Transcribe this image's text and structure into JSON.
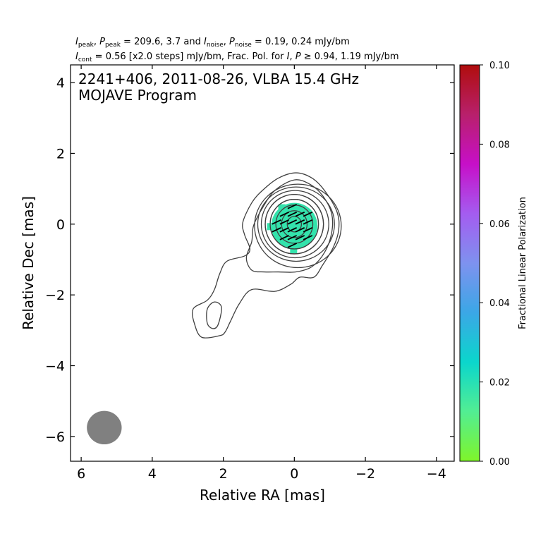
{
  "header": {
    "line1": {
      "i_peak_sym": "I",
      "i_peak_sub": "peak",
      "p_peak_sym": "P",
      "p_peak_sub": "peak",
      "peaks_text": " = 209.6, 3.7 and ",
      "i_noise_sym": "I",
      "i_noise_sub": "noise",
      "p_noise_sym": "P",
      "p_noise_sub": "noise",
      "noise_text": " = 0.19, 0.24 mJy/bm"
    },
    "line2": {
      "i_cont_sym": "I",
      "i_cont_sub": "cont",
      "cont_text": " = 0.56 [x2.0 steps] mJy/bm, Frac. Pol. for ",
      "i_sym": "I",
      "p_sym": "P",
      "ge_text": " ≥ 0.94, 1.19 mJy/bm"
    }
  },
  "chart_data": {
    "type": "contour",
    "source": "2241+406, 2011-08-26, VLBA 15.4 GHz",
    "program": "MOJAVE Program",
    "xlabel": "Relative RA [mas]",
    "ylabel": "Relative Dec [mas]",
    "xlim": [
      6.3,
      -4.5
    ],
    "ylim": [
      -6.7,
      4.5
    ],
    "x_ticks": [
      6,
      4,
      2,
      0,
      -2,
      -4
    ],
    "x_tick_labels": [
      "6",
      "4",
      "2",
      "0",
      "−2",
      "−4"
    ],
    "y_ticks": [
      4,
      2,
      0,
      -2,
      -4,
      -6
    ],
    "y_tick_labels": [
      "4",
      "2",
      "0",
      "−2",
      "−4",
      "−6"
    ],
    "contour_base_mjy_per_beam": 0.56,
    "contour_step_factor": 2.0,
    "core_position_mas": [
      0.0,
      0.0
    ],
    "beam": {
      "center_mas": [
        5.35,
        -5.75
      ],
      "major_mas": 0.98,
      "minor_mas": 0.9,
      "color": "#808080"
    },
    "polarization_region": {
      "center_mas": [
        0.0,
        -0.05
      ],
      "radius_mas": 0.65,
      "fractional_pol": 0.018
    },
    "evpa_angle_deg": -25,
    "colorbar": {
      "label": "Fractional Linear Polarization",
      "min": 0.0,
      "max": 0.1,
      "ticks": [
        0.0,
        0.02,
        0.04,
        0.06,
        0.08,
        0.1
      ],
      "tick_labels": [
        "0.00",
        "0.02",
        "0.04",
        "0.06",
        "0.08",
        "0.10"
      ],
      "colors": [
        "#7ff52a",
        "#52ee93",
        "#0bd6cc",
        "#3ba7e6",
        "#7e92ef",
        "#a45cf0",
        "#c70fc8",
        "#b8206b",
        "#b00d0d"
      ]
    }
  }
}
